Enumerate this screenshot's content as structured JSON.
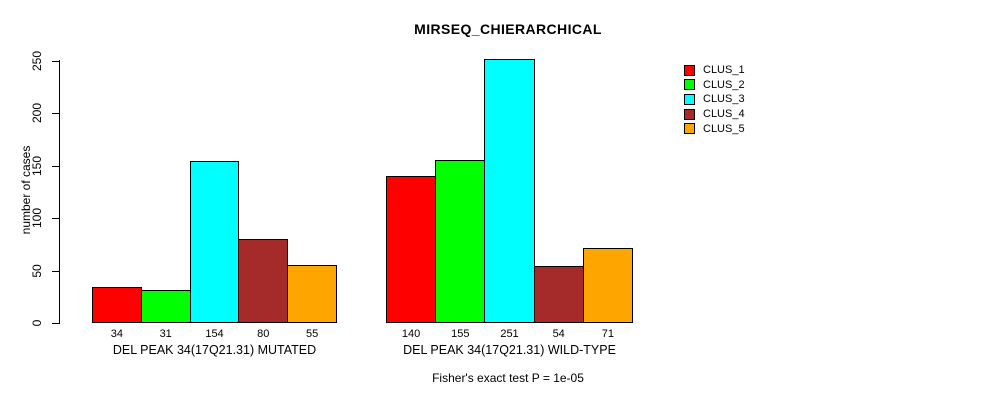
{
  "chart_data": {
    "type": "bar",
    "title": "MIRSEQ_CHIERARCHICAL",
    "xlabel": "",
    "ylabel": "number of cases",
    "ylim": [
      0,
      250
    ],
    "yticks": [
      0,
      50,
      100,
      150,
      200,
      250
    ],
    "grid": false,
    "legend_position": "right-top",
    "categories": [
      "DEL PEAK 34(17Q21.31) MUTATED",
      "DEL PEAK 34(17Q21.31) WILD-TYPE"
    ],
    "series": [
      {
        "name": "CLUS_1",
        "color": "#FF0000",
        "values": [
          34,
          140
        ]
      },
      {
        "name": "CLUS_2",
        "color": "#00FF00",
        "values": [
          31,
          155
        ]
      },
      {
        "name": "CLUS_3",
        "color": "#00FFFF",
        "values": [
          154,
          251
        ]
      },
      {
        "name": "CLUS_4",
        "color": "#A52A2A",
        "values": [
          80,
          54
        ]
      },
      {
        "name": "CLUS_5",
        "color": "#FFA500",
        "values": [
          55,
          71
        ]
      }
    ],
    "value_labels_shown": true,
    "annotation": "Fisher's exact test P = 1e-05"
  },
  "colors": {
    "background": "#FFFFFF",
    "axis": "#000000",
    "bar_border": "#000000",
    "text": "#000000"
  }
}
